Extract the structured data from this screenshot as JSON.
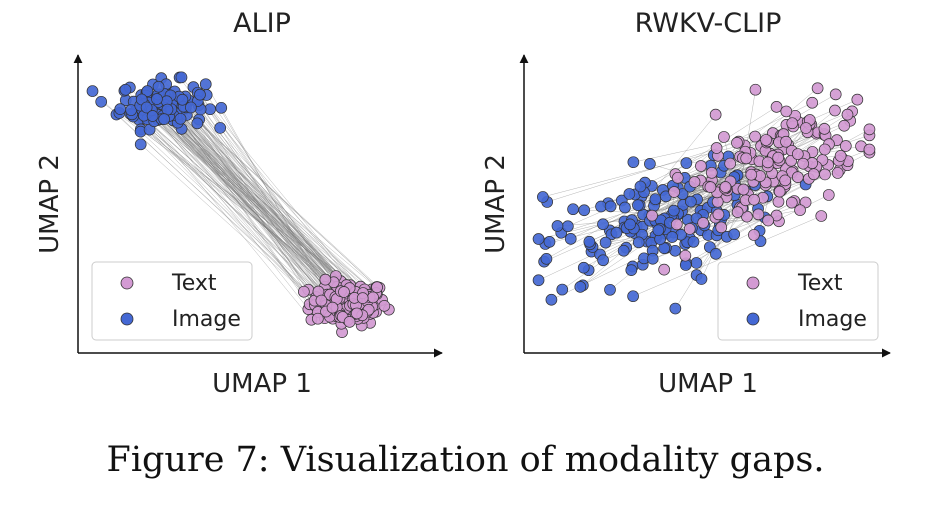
{
  "caption": "Figure 7: Visualization of modality gaps.",
  "colors": {
    "text": "#d39ad3",
    "image": "#4468d4",
    "edge": "#333333",
    "link": "#7a7a7a"
  },
  "chart_data": [
    {
      "type": "scatter",
      "title": "ALIP",
      "xlabel": "UMAP 1",
      "ylabel": "UMAP 2",
      "xlim": [
        0,
        10
      ],
      "ylim": [
        0,
        10
      ],
      "legend": {
        "placement": "bottom-left",
        "entries": [
          "Text",
          "Image"
        ]
      },
      "series": [
        {
          "name": "Text",
          "color": "#d39ad3",
          "cluster": "lower-right",
          "center": [
            7.6,
            1.5
          ],
          "spread": [
            1.0,
            0.7
          ],
          "count": 140
        },
        {
          "name": "Image",
          "color": "#4468d4",
          "cluster": "upper-left",
          "center": [
            2.3,
            8.5
          ],
          "spread": [
            1.1,
            0.75
          ],
          "count": 140
        }
      ],
      "links": "each text point connected to its paired image point"
    },
    {
      "type": "scatter",
      "title": "RWKV-CLIP",
      "xlabel": "UMAP 1",
      "ylabel": "UMAP 2",
      "xlim": [
        0,
        10
      ],
      "ylim": [
        0,
        10
      ],
      "legend": {
        "placement": "bottom-right",
        "entries": [
          "Text",
          "Image"
        ]
      },
      "series": [
        {
          "name": "Text",
          "color": "#d39ad3",
          "cluster": "upper-right band",
          "center": [
            7.2,
            6.4
          ],
          "spread": [
            1.5,
            1.6
          ],
          "count": 170
        },
        {
          "name": "Image",
          "color": "#4468d4",
          "cluster": "left-diagonal band",
          "center": [
            3.6,
            4.3
          ],
          "spread": [
            2.2,
            1.6
          ],
          "count": 170
        }
      ],
      "links": "each text point connected to its paired image point"
    }
  ]
}
